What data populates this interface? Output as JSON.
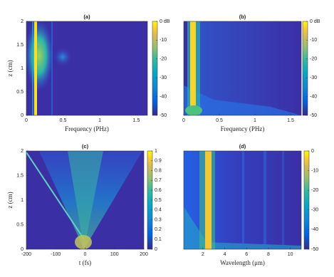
{
  "chart_data": [
    {
      "type": "heatmap",
      "title": "(a)",
      "xlabel": "Frequency (PHz)",
      "ylabel": "z (cm)",
      "xlim": [
        0,
        1.65
      ],
      "xticks": [
        0,
        0.5,
        1,
        1.5
      ],
      "ylim": [
        0,
        2
      ],
      "yticks": [
        0,
        0.5,
        1,
        1.5,
        2
      ],
      "colorbar": {
        "clim": [
          -50,
          0
        ],
        "ticks": [
          {
            "value": 0,
            "label": "0 dB"
          },
          -10,
          -20,
          -30,
          -40,
          -50
        ]
      }
    },
    {
      "type": "heatmap",
      "title": "(b)",
      "xlabel": "Frequency (PHz)",
      "xlim": [
        0,
        1.65
      ],
      "xticks": [
        0,
        0.5,
        1,
        1.5
      ],
      "ylim": [
        0,
        2
      ],
      "colorbar": {
        "clim": [
          -50,
          0
        ],
        "ticks": [
          {
            "value": 0,
            "label": "0 dB"
          },
          -10,
          -20,
          -30,
          -40,
          -50
        ]
      }
    },
    {
      "type": "heatmap",
      "title": "(c)",
      "xlabel": "t (fs)",
      "ylabel": "z (cm)",
      "xlim": [
        -200,
        200
      ],
      "xticks": [
        -200,
        -100,
        0,
        100,
        200
      ],
      "ylim": [
        0,
        2
      ],
      "yticks": [
        0,
        0.5,
        1,
        1.5,
        2
      ],
      "colorbar": {
        "clim": [
          0,
          1
        ],
        "ticks": [
          0,
          0.1,
          0.2,
          0.3,
          0.4,
          0.5,
          0.6,
          0.7,
          0.8,
          0.9,
          1
        ]
      }
    },
    {
      "type": "heatmap",
      "title": "(d)",
      "xlabel": "Wavelength (μm)",
      "xlim": [
        0.25,
        11
      ],
      "xticks": [
        2,
        4,
        6,
        8,
        10
      ],
      "ylim": [
        0,
        2
      ],
      "colorbar": {
        "clim": [
          -50,
          0
        ],
        "ticks": [
          0,
          -10,
          -20,
          -30,
          -40,
          -50
        ]
      }
    }
  ]
}
